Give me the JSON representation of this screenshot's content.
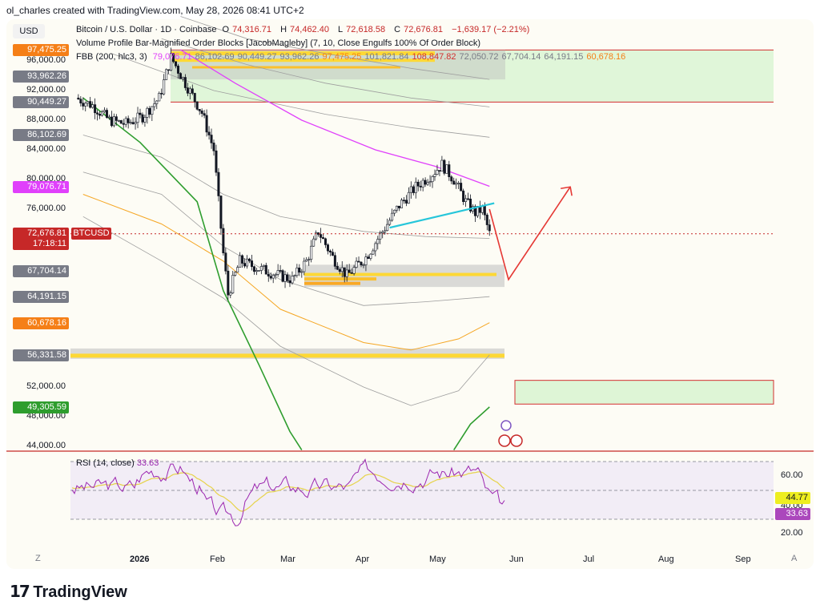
{
  "header": {
    "attribution": "ol_charles created with TradingView.com, May 28, 2026 08:41 UTC+2"
  },
  "currency_button": "USD",
  "legend": {
    "symbol": "Bitcoin / U.S. Dollar · 1D · Coinbase",
    "o_label": "O",
    "o_value": "74,316.71",
    "h_label": "H",
    "h_value": "74,462.40",
    "l_label": "L",
    "l_value": "72,618.58",
    "c_label": "C",
    "c_value": "72,676.81",
    "change": "−1,639.17 (−2.21%)",
    "indicator1": "Volume Profile Bar-Magnified Order Blocks [JacobMagleby] (7, 10, Close Engulfs 100% Of Order Block)",
    "indicator2_name": "FBB (200, hlc3, 3)",
    "fbb_values": [
      {
        "text": "79,076.71",
        "color": "#e040fb"
      },
      {
        "text": "86,102.69",
        "color": "#787b86"
      },
      {
        "text": "90,449.27",
        "color": "#787b86"
      },
      {
        "text": "93,962.26",
        "color": "#787b86"
      },
      {
        "text": "97,475.25",
        "color": "#f57f17"
      },
      {
        "text": "101,821.84",
        "color": "#787b86"
      },
      {
        "text": "108,847.82",
        "color": "#d32f2f"
      },
      {
        "text": "72,050.72",
        "color": "#787b86"
      },
      {
        "text": "67,704.14",
        "color": "#787b86"
      },
      {
        "text": "64,191.15",
        "color": "#787b86"
      },
      {
        "text": "60,678.16",
        "color": "#f57f17"
      }
    ]
  },
  "price_axis": {
    "ticks": [
      "96,000.00",
      "92,000.00",
      "88,000.00",
      "84,000.00",
      "80,000.00",
      "76,000.00",
      "52,000.00",
      "48,000.00",
      "44,000.00"
    ],
    "labels": [
      {
        "text": "97,475.25",
        "value": 97475.25,
        "bg": "#f57f17",
        "fg": "#ffffff"
      },
      {
        "text": "93,962.26",
        "value": 93962.26,
        "bg": "#787b86",
        "fg": "#ffffff"
      },
      {
        "text": "90,449.27",
        "value": 90449.27,
        "bg": "#787b86",
        "fg": "#ffffff"
      },
      {
        "text": "86,102.69",
        "value": 86102.69,
        "bg": "#787b86",
        "fg": "#ffffff"
      },
      {
        "text": "79,076.71",
        "value": 79076.71,
        "bg": "#e040fb",
        "fg": "#ffffff"
      },
      {
        "text": "72,050.72",
        "value": 72050.72,
        "bg": "#787b86",
        "fg": "#ffffff"
      },
      {
        "text": "67,704.14",
        "value": 67704.14,
        "bg": "#787b86",
        "fg": "#ffffff"
      },
      {
        "text": "64,191.15",
        "value": 64191.15,
        "bg": "#787b86",
        "fg": "#ffffff"
      },
      {
        "text": "60,678.16",
        "value": 60678.16,
        "bg": "#f57f17",
        "fg": "#ffffff"
      },
      {
        "text": "56,331.58",
        "value": 56331.58,
        "bg": "#787b86",
        "fg": "#ffffff"
      },
      {
        "text": "49,305.59",
        "value": 49305.59,
        "bg": "#2e9d2e",
        "fg": "#ffffff"
      }
    ],
    "last_price": "72,676.81",
    "countdown": "17:18:11",
    "symbol_tag": "BTCUSD",
    "last_color": "#c62828"
  },
  "time_axis": {
    "labels": [
      {
        "text": "2026",
        "bold": true
      },
      {
        "text": "Feb"
      },
      {
        "text": "Mar"
      },
      {
        "text": "Apr"
      },
      {
        "text": "May"
      },
      {
        "text": "Jun"
      },
      {
        "text": "Jul"
      },
      {
        "text": "Aug"
      },
      {
        "text": "Sep"
      }
    ]
  },
  "rsi": {
    "title": "RSI (14, close)",
    "value": "33.63",
    "ma_value": "44.77",
    "ticks": [
      "60.00",
      "40.00",
      "20.00"
    ],
    "colors": {
      "rsi": "#9c27b0",
      "ma": "#e6d34a",
      "value_bg": "#ab47bc",
      "ma_bg": "#eeee20"
    }
  },
  "footer": {
    "brand": "TradingView"
  },
  "chart_data": {
    "type": "line",
    "title": "Bitcoin / U.S. Dollar · 1D · Coinbase",
    "ylim": [
      43000,
      99500
    ],
    "close_series_approx": [
      {
        "x": "2025-12-05",
        "y": 91000
      },
      {
        "x": "2025-12-12",
        "y": 90000
      },
      {
        "x": "2025-12-19",
        "y": 88000
      },
      {
        "x": "2025-12-26",
        "y": 87500
      },
      {
        "x": "2026-01-02",
        "y": 88500
      },
      {
        "x": "2026-01-09",
        "y": 91000
      },
      {
        "x": "2026-01-14",
        "y": 96500
      },
      {
        "x": "2026-01-20",
        "y": 93000
      },
      {
        "x": "2026-01-27",
        "y": 89000
      },
      {
        "x": "2026-02-01",
        "y": 84000
      },
      {
        "x": "2026-02-05",
        "y": 70000
      },
      {
        "x": "2026-02-07",
        "y": 64500
      },
      {
        "x": "2026-02-12",
        "y": 69000
      },
      {
        "x": "2026-02-20",
        "y": 68000
      },
      {
        "x": "2026-03-01",
        "y": 67000
      },
      {
        "x": "2026-03-06",
        "y": 66500
      },
      {
        "x": "2026-03-12",
        "y": 69000
      },
      {
        "x": "2026-03-17",
        "y": 73000
      },
      {
        "x": "2026-03-23",
        "y": 69500
      },
      {
        "x": "2026-03-29",
        "y": 67000
      },
      {
        "x": "2026-04-06",
        "y": 69500
      },
      {
        "x": "2026-04-13",
        "y": 73000
      },
      {
        "x": "2026-04-20",
        "y": 76500
      },
      {
        "x": "2026-04-27",
        "y": 79000
      },
      {
        "x": "2026-05-03",
        "y": 80500
      },
      {
        "x": "2026-05-08",
        "y": 82000
      },
      {
        "x": "2026-05-13",
        "y": 80000
      },
      {
        "x": "2026-05-18",
        "y": 77000
      },
      {
        "x": "2026-05-22",
        "y": 75500
      },
      {
        "x": "2026-05-25",
        "y": 76000
      },
      {
        "x": "2026-05-28",
        "y": 72677
      }
    ],
    "fbb_basis_approx": [
      {
        "x": "2026-01-20",
        "y": 97000
      },
      {
        "x": "2026-02-20",
        "y": 91000
      },
      {
        "x": "2026-03-20",
        "y": 86500
      },
      {
        "x": "2026-04-20",
        "y": 83000
      },
      {
        "x": "2026-05-28",
        "y": 79077
      }
    ],
    "zones": [
      {
        "name": "supply zone",
        "from": 90449,
        "to": 97475
      },
      {
        "name": "order block 1",
        "from": 65500,
        "to": 68500
      },
      {
        "name": "order block 2",
        "from": 55800,
        "to": 57200
      },
      {
        "name": "demand target",
        "from": 49700,
        "to": 52900
      }
    ],
    "projection": [
      {
        "x": "2026-05-28",
        "y": 76000
      },
      {
        "x": "2026-06-05",
        "y": 66500
      },
      {
        "x": "2026-07-01",
        "y": 79000
      }
    ],
    "rsi_ylim": [
      15,
      75
    ],
    "rsi_last": 33.63,
    "rsi_ma_last": 44.77
  }
}
